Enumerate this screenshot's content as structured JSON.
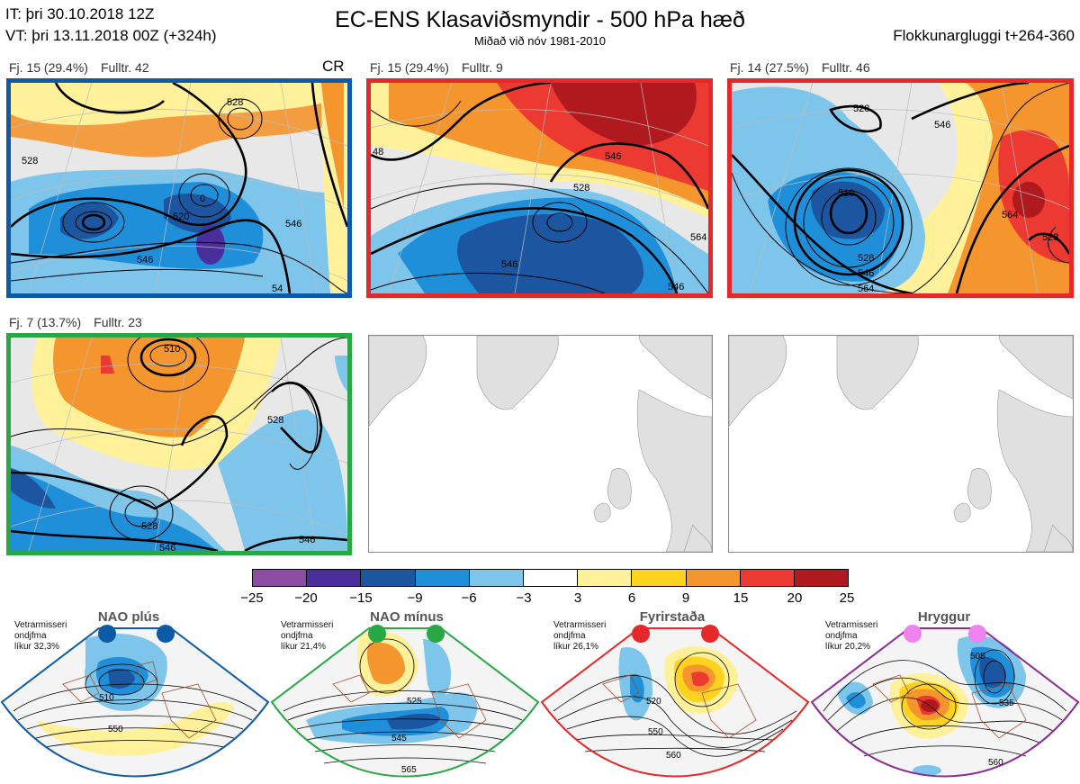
{
  "header": {
    "issue_time": "IT: þri 30.10.2018 12Z",
    "valid_time": "VT: þri 13.11.2018 00Z  (+324h)",
    "title": "EC-ENS Klasaviðsmyndir - 500 hPa hæð",
    "subtitle": "Miðað við nóv 1981-2010",
    "window": "Flokkunargluggi t+264-360"
  },
  "clusters": [
    {
      "label": "Fj. 15 (29.4%)",
      "members": "Fulltr. 42",
      "tag": "CR",
      "border_color": "#0d5aa7",
      "contours": [
        "520",
        "0",
        "528",
        "546",
        "54",
        "546",
        "528"
      ]
    },
    {
      "label": "Fj. 15 (29.4%)",
      "members": "Fulltr. 9",
      "tag": "",
      "border_color": "#e6282a",
      "contours": [
        "528",
        "546",
        "546",
        "564",
        "546",
        "48"
      ]
    },
    {
      "label": "Fj. 14 (27.5%)",
      "members": "Fulltr. 46",
      "tag": "",
      "border_color": "#e6282a",
      "contours": [
        "528",
        "546",
        "510",
        "528",
        "546",
        "564",
        "564",
        "528"
      ]
    },
    {
      "label": "Fj. 7 (13.7%)",
      "members": "Fulltr. 23",
      "tag": "",
      "border_color": "#27a844",
      "contours": [
        "510",
        "528",
        "528",
        "546",
        "546"
      ]
    }
  ],
  "colorbar": {
    "ticks": [
      "−25",
      "−20",
      "−15",
      "−9",
      "−6",
      "−3",
      "3",
      "6",
      "9",
      "15",
      "20",
      "25"
    ],
    "colors": [
      "#8c4ca3",
      "#4a2e9c",
      "#1c56a0",
      "#1e8fd8",
      "#7ec5ec",
      "#ffffff",
      "#fff19a",
      "#ffd21f",
      "#f5952e",
      "#ec3a32",
      "#b01a1f"
    ]
  },
  "regimes": [
    {
      "name": "NAO plús",
      "info": [
        "Vetrarmisseri",
        "ondjfma",
        "líkur 32,3%"
      ],
      "color": "#0d5aa7",
      "dot_color": "#0d5aa7",
      "contours": [
        "510",
        "550"
      ]
    },
    {
      "name": "NAO mínus",
      "info": [
        "Vetrarmisseri",
        "ondjfma",
        "líkur 21,4%"
      ],
      "color": "#27a844",
      "dot_color": "#27a844",
      "contours": [
        "525",
        "545",
        "565"
      ]
    },
    {
      "name": "Fyrirstaða",
      "info": [
        "Vetrarmisseri",
        "ondjfma",
        "líkur 26,1%"
      ],
      "color": "#e6282a",
      "dot_color": "#e6282a",
      "contours": [
        "520",
        "550",
        "560"
      ]
    },
    {
      "name": "Hryggur",
      "info": [
        "Vetrarmisseri",
        "ondjfma",
        "líkur 20,2%"
      ],
      "color": "#8b2c92",
      "dot_color": "#ee82ee",
      "contours": [
        "505",
        "535",
        "560"
      ]
    }
  ]
}
